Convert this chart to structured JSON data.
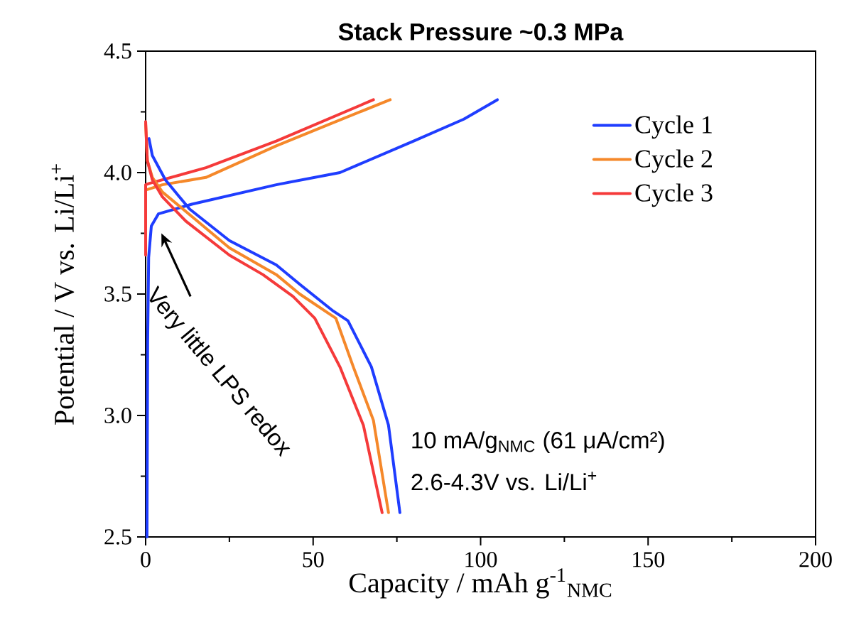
{
  "chart_data": {
    "type": "line",
    "title": "Stack Pressure ~0.3 MPa",
    "xlabel": "Capacity / mAh g$^{-1}$$_{NMC}$",
    "ylabel": "Potential / V vs. Li/Li$^{+}$",
    "xlim": [
      0,
      200
    ],
    "ylim": [
      2.5,
      4.5
    ],
    "xticks": [
      0,
      50,
      100,
      150,
      200
    ],
    "yticks": [
      2.5,
      {
        "value": 3,
        "label": "3.0"
      },
      3.5,
      {
        "value": 4,
        "label": "4.0"
      },
      4.5
    ],
    "legend": "top right",
    "grid": false,
    "marker": "none",
    "line_style": "solid",
    "annotations": [
      "Very little LPS redox",
      "10 mA/g$_{NMC}$ (61 μA/cm²)",
      "2.6-4.3V vs. Li/Li$^{+}$"
    ],
    "series": [
      {
        "name": "Cycle 1",
        "color": "#1f3dff",
        "x": [
          0.4,
          0.6,
          0.9,
          1.7,
          3.8,
          13.8,
          39,
          58,
          80,
          95,
          105
        ],
        "values": [
          2.5,
          3.3,
          3.65,
          3.78,
          3.83,
          3.87,
          3.95,
          4.0,
          4.13,
          4.22,
          4.3
        ]
      },
      {
        "name": "Cycle 2",
        "color": "#f5882a",
        "x": [
          0.5,
          5,
          18,
          39,
          55,
          73
        ],
        "values": [
          3.93,
          3.95,
          3.98,
          4.11,
          4.2,
          4.3
        ]
      },
      {
        "name": "Cycle 3",
        "color": "#f53a3a",
        "x": [
          0,
          0,
          1,
          18,
          39,
          68
        ],
        "values": [
          3.66,
          3.95,
          3.955,
          4.02,
          4.13,
          4.3
        ]
      },
      {
        "color": "#1f3dff",
        "x": [
          1,
          2,
          5.9,
          13.1,
          25,
          39,
          46,
          56,
          60.4,
          67.4,
          72.5,
          75.9
        ],
        "values": [
          4.14,
          4.07,
          3.97,
          3.85,
          3.72,
          3.62,
          3.54,
          3.43,
          3.39,
          3.2,
          2.96,
          2.6
        ]
      },
      {
        "color": "#f5882a",
        "x": [
          0,
          0.5,
          2,
          5,
          12,
          25,
          39,
          46,
          56.8,
          62,
          68,
          72.5
        ],
        "values": [
          4.2,
          4.05,
          3.98,
          3.92,
          3.84,
          3.69,
          3.58,
          3.5,
          3.4,
          3.2,
          2.98,
          2.6
        ]
      },
      {
        "color": "#f53a3a",
        "x": [
          0,
          0.5,
          2,
          5,
          12,
          25,
          35,
          44,
          50.5,
          58,
          65,
          70.6
        ],
        "values": [
          4.21,
          4.05,
          3.97,
          3.9,
          3.8,
          3.66,
          3.58,
          3.49,
          3.4,
          3.2,
          2.96,
          2.6
        ]
      }
    ]
  }
}
